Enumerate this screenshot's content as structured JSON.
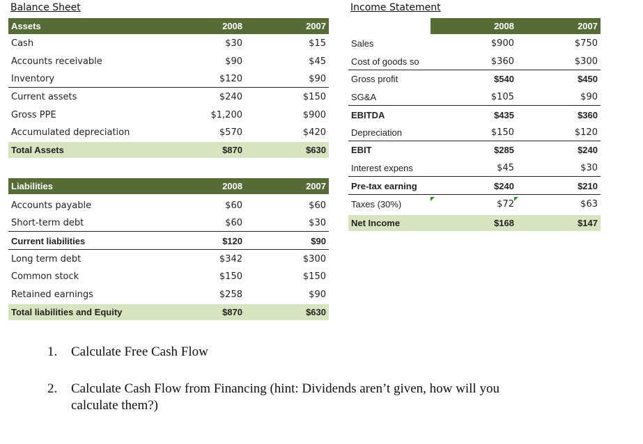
{
  "balance_sheet": {
    "title": "Balance Sheet",
    "assets": {
      "header": {
        "label": "Assets",
        "y1": "2008",
        "y2": "2007"
      },
      "rows": [
        {
          "label": "Cash",
          "y1": "$30",
          "y2": "$15"
        },
        {
          "label": "Accounts receivable",
          "y1": "$90",
          "y2": "$45"
        },
        {
          "label": "Inventory",
          "y1": "$120",
          "y2": "$90"
        },
        {
          "label": "Current assets",
          "y1": "$240",
          "y2": "$150"
        },
        {
          "label": "Gross PPE",
          "y1": "$1,200",
          "y2": "$900"
        },
        {
          "label": "Accumulated depreciation",
          "y1": "$570",
          "y2": "$420"
        }
      ],
      "total": {
        "label": "Total Assets",
        "y1": "$870",
        "y2": "$630"
      }
    },
    "liabilities": {
      "header": {
        "label": "Liabilities",
        "y1": "2008",
        "y2": "2007"
      },
      "rows": [
        {
          "label": "Accounts payable",
          "y1": "$60",
          "y2": "$60"
        },
        {
          "label": "Short-term debt",
          "y1": "$60",
          "y2": "$30"
        },
        {
          "label": "Current liabilities",
          "y1": "$120",
          "y2": "$90"
        },
        {
          "label": "Long term debt",
          "y1": "$342",
          "y2": "$300"
        },
        {
          "label": "Common stock",
          "y1": "$150",
          "y2": "$150"
        },
        {
          "label": "Retained earnings",
          "y1": "$258",
          "y2": "$90"
        }
      ],
      "total": {
        "label": "Total liabilities and Equity",
        "y1": "$870",
        "y2": "$630"
      }
    }
  },
  "income_statement": {
    "title": "Income Statement",
    "header": {
      "y1": "2008",
      "y2": "2007"
    },
    "rows": [
      {
        "label": "Sales",
        "y1": "$900",
        "y2": "$750"
      },
      {
        "label": "Cost of goods so",
        "y1": "$360",
        "y2": "$300"
      },
      {
        "label": "Gross profit",
        "y1": "$540",
        "y2": "$450"
      },
      {
        "label": "SG&A",
        "y1": "$105",
        "y2": "$90"
      },
      {
        "label": "EBITDA",
        "y1": "$435",
        "y2": "$360"
      },
      {
        "label": "Depreciation",
        "y1": "$150",
        "y2": "$120"
      },
      {
        "label": "EBIT",
        "y1": "$285",
        "y2": "$240"
      },
      {
        "label": "Interest expens",
        "y1": "$45",
        "y2": "$30"
      },
      {
        "label": "Pre-tax earning",
        "y1": "$240",
        "y2": "$210"
      },
      {
        "label": "Taxes (30%)",
        "y1": "$72",
        "y2": "$63"
      }
    ],
    "total": {
      "label": "Net Income",
      "y1": "$168",
      "y2": "$147"
    }
  },
  "questions": [
    {
      "number": "1.",
      "text": "Calculate Free Cash Flow"
    },
    {
      "number": "2.",
      "text": "Calculate Cash Flow from Financing (hint: Dividends aren’t given, how will you",
      "text2": "calculate them?)"
    }
  ]
}
